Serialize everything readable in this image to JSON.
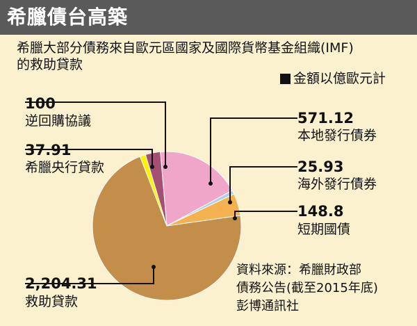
{
  "header": {
    "title": "希臘債台高築",
    "subtitle_line1": "希臘大部分債務來自歐元區國家及國際貨幣基金組織(IMF)",
    "subtitle_line2": "的救助貸款",
    "unit_note": "金額以億歐元計"
  },
  "chart_data": {
    "type": "pie",
    "title": "希臘債台高築",
    "unit": "億歐元",
    "slices": [
      {
        "label": "本地發行債券",
        "value_label": "571.12",
        "value": 571.12,
        "color": "#f0a6c8"
      },
      {
        "label": "海外發行債券",
        "value_label": "25.93",
        "value": 25.93,
        "color": "#a9d2ec"
      },
      {
        "label": "短期國債",
        "value_label": "148.8",
        "value": 148.8,
        "color": "#f4b14f"
      },
      {
        "label": "救助貸款",
        "value_label": "2,204.31",
        "value": 2204.31,
        "color": "#c38e4a"
      },
      {
        "label": "希臘央行貸款",
        "value_label": "37.91",
        "value": 37.91,
        "color": "#fff200"
      },
      {
        "label": "逆回購協議",
        "value_label": "100",
        "value": 100,
        "color": "#a35072"
      }
    ]
  },
  "source": {
    "line1": "資料來源：希臘財政部",
    "line2": "債務公告(截至2015年底)",
    "line3": "彭博通訊社"
  }
}
